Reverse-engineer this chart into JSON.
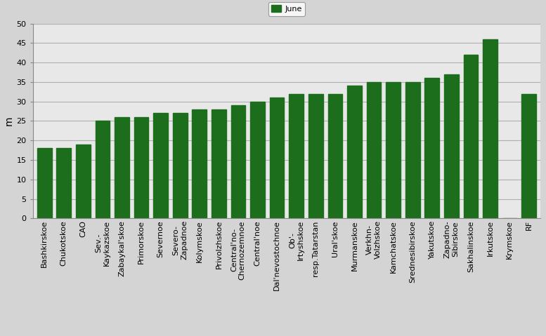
{
  "categories": [
    "Bashkirskoe",
    "Chukotskoe",
    "CAO",
    "Sev.-\nKaykazskoe",
    "Zabaykal'skoe",
    "Primorskoe",
    "Severnoe",
    "Severo-\nZapadnoe",
    "Kolymskoe",
    "Privolzhskoe",
    "Central'no-\nChernozemnoe",
    "Central'noe",
    "Dal'nevostochnoe",
    "Ob'-\nIrtyshskoe",
    "resp.Tatarstan",
    "Ural'skoe",
    "Murmanskoe",
    "Verkhn-\nVolzhskoe",
    "Kamchatskoe",
    "Srednesibirskoe",
    "Yakutskoe",
    "Zapadno-\nSibirskoe",
    "Sakhalinskoe",
    "Irkutskoe",
    "Krymskoe",
    "RF"
  ],
  "values": [
    18,
    18,
    19,
    25,
    26,
    26,
    27,
    27,
    28,
    28,
    29,
    30,
    31,
    32,
    32,
    32,
    34,
    35,
    35,
    35,
    36,
    37,
    42,
    46,
    0,
    32
  ],
  "bar_color": "#1c6e1c",
  "ylabel": "m",
  "ylim": [
    0,
    50
  ],
  "yticks": [
    0,
    5,
    10,
    15,
    20,
    25,
    30,
    35,
    40,
    45,
    50
  ],
  "legend_label": "June",
  "plot_bg_color": "#e8e8e8",
  "fig_bg_color": "#d4d4d4",
  "grid_color": "#b0b0b0",
  "tick_fontsize": 8,
  "ylabel_fontsize": 10,
  "legend_fontsize": 8
}
